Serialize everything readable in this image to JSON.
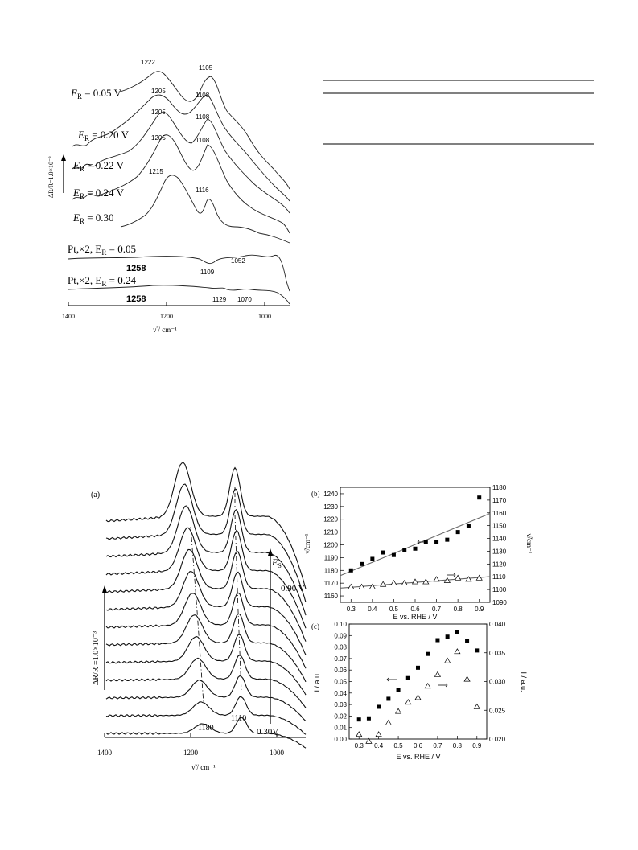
{
  "figure1": {
    "trace_labels": [
      {
        "prefix": "E",
        "sub": "R",
        "rest": " = 0.05 V"
      },
      {
        "prefix": "E",
        "sub": "R",
        "rest": " = 0.20 V"
      },
      {
        "prefix": "E",
        "sub": "R",
        "rest": " = 0.22 V"
      },
      {
        "prefix": "E",
        "sub": "R",
        "rest": " = 0.24 V"
      },
      {
        "prefix": "E",
        "sub": "R",
        "rest": "  =   0.30"
      },
      {
        "prefix": "Pt,×2, E",
        "sub": "R",
        "rest": " = 0.05"
      },
      {
        "prefix": "Pt,×2, E",
        "sub": "R",
        "rest": " = 0.24"
      }
    ],
    "peak_labels": [
      "1222",
      "1105",
      "1205",
      "1108",
      "1205",
      "1108",
      "1205",
      "1108",
      "1215",
      "1116",
      "1258",
      "1109",
      "1052",
      "1258",
      "1129",
      "1070"
    ],
    "scale_label": "ΔR/R=1.0×10⁻³",
    "x_ticks": [
      "1400",
      "1200",
      "1000"
    ],
    "x_axis_label": "ν̃ / cm⁻¹"
  },
  "figure2a": {
    "panel_label": "(a)",
    "scale_label": "ΔR/R =1.0×10⁻³",
    "es_label": "E",
    "es_sub": "S",
    "top_potential": "0.90 V",
    "bottom_potential": "0.30V",
    "peak_labels": [
      "1180",
      "1110"
    ],
    "x_ticks": [
      "1400",
      "1200",
      "1000"
    ],
    "x_axis_label": "ν̃ / cm⁻¹"
  },
  "chart_data": [
    {
      "type": "scatter",
      "panel": "(b)",
      "x": [
        0.3,
        0.35,
        0.4,
        0.45,
        0.5,
        0.55,
        0.6,
        0.65,
        0.7,
        0.75,
        0.8,
        0.85,
        0.9
      ],
      "series": [
        {
          "marker": "filled-square",
          "axis": "left",
          "values": [
            1180,
            1185,
            1189,
            1194,
            1192,
            1196,
            1197,
            1202,
            1202,
            1204,
            1210,
            1215,
            1237
          ]
        },
        {
          "marker": "open-triangle",
          "axis": "right",
          "values": [
            1102,
            1102,
            1102,
            1104,
            1105,
            1105,
            1106,
            1106,
            1108,
            1107,
            1109,
            1108,
            1109
          ]
        }
      ],
      "xlabel": "E vs. RHE / V",
      "ylabel": "ν̃/cm⁻¹",
      "y2label": "ν̃/cm⁻¹",
      "xlim": [
        0.25,
        0.95
      ],
      "ylim": [
        1155,
        1245
      ],
      "y2lim": [
        1090,
        1180
      ],
      "x_ticks": [
        "0.3",
        "0.4",
        "0.5",
        "0.6",
        "0.7",
        "0.8",
        "0.9"
      ],
      "y_ticks": [
        "1160",
        "1170",
        "1180",
        "1190",
        "1200",
        "1210",
        "1220",
        "1230",
        "1240"
      ],
      "y2_ticks": [
        "1090",
        "1100",
        "1110",
        "1120",
        "1130",
        "1140",
        "1150",
        "1160",
        "1170",
        "1180"
      ]
    },
    {
      "type": "scatter",
      "panel": "(c)",
      "x": [
        0.3,
        0.35,
        0.4,
        0.45,
        0.5,
        0.55,
        0.6,
        0.65,
        0.7,
        0.75,
        0.8,
        0.85,
        0.9
      ],
      "series": [
        {
          "marker": "filled-square",
          "axis": "left",
          "values": [
            0.017,
            0.018,
            0.028,
            0.035,
            0.043,
            0.053,
            0.062,
            0.074,
            0.086,
            0.089,
            0.093,
            0.085,
            0.077
          ]
        },
        {
          "marker": "open-triangle",
          "axis": "right",
          "values": [
            0.0208,
            0.0196,
            0.0208,
            0.0228,
            0.0248,
            0.0264,
            0.0272,
            0.0292,
            0.0312,
            0.0336,
            0.0352,
            0.0304,
            0.0256
          ]
        }
      ],
      "xlabel": "E vs. RHE / V",
      "ylabel": "I / a.u.",
      "y2label": "I / a.u.",
      "xlim": [
        0.25,
        0.95
      ],
      "ylim": [
        0.0,
        0.1
      ],
      "y2lim": [
        0.02,
        0.04
      ],
      "x_ticks": [
        "0.3",
        "0.4",
        "0.5",
        "0.6",
        "0.7",
        "0.8",
        "0.9"
      ],
      "y_ticks": [
        "0.00",
        "0.01",
        "0.02",
        "0.03",
        "0.04",
        "0.05",
        "0.06",
        "0.07",
        "0.08",
        "0.09",
        "0.10"
      ],
      "y2_ticks": [
        "0.020",
        "0.025",
        "0.030",
        "0.035",
        "0.040"
      ]
    }
  ]
}
